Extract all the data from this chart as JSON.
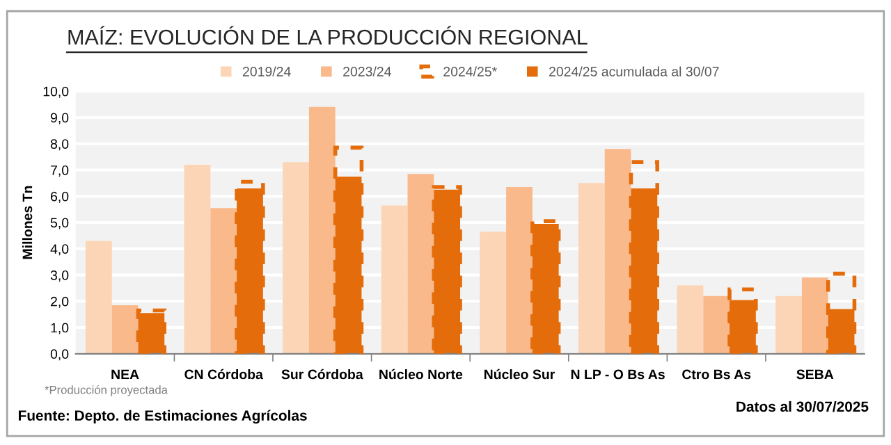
{
  "chart_data": {
    "type": "bar",
    "title": "MAÍZ: EVOLUCIÓN DE LA PRODUCCIÓN REGIONAL",
    "ylabel": "Millones Tn",
    "categories": [
      "NEA",
      "CN Córdoba",
      "Sur Córdoba",
      "Núcleo Norte",
      "Núcleo Sur",
      "N LP - O Bs As",
      "Ctro Bs As",
      "SEBA"
    ],
    "series": [
      {
        "name": "2019/24",
        "color": "#fbd5b5",
        "values": [
          4.3,
          7.2,
          7.3,
          5.65,
          4.65,
          6.5,
          2.6,
          2.2
        ]
      },
      {
        "name": "2023/24",
        "color": "#f9b98a",
        "values": [
          1.85,
          5.55,
          9.4,
          6.85,
          6.35,
          7.8,
          2.2,
          2.9
        ]
      },
      {
        "name": "2024/25*",
        "color": "#e46c0a",
        "line_style": "dashed",
        "values": [
          1.65,
          6.55,
          7.85,
          6.35,
          5.05,
          7.3,
          2.45,
          3.05
        ]
      },
      {
        "name": "2024/25 acumulada al 30/07",
        "color": "#e46c0a",
        "values": [
          1.55,
          6.3,
          6.75,
          6.25,
          4.95,
          6.3,
          2.05,
          1.7
        ]
      }
    ],
    "ylim": [
      0,
      10
    ],
    "yticks": [
      {
        "value": 0,
        "label": "0,0"
      },
      {
        "value": 1,
        "label": "1,0"
      },
      {
        "value": 2,
        "label": "2,0"
      },
      {
        "value": 3,
        "label": "3,0"
      },
      {
        "value": 4,
        "label": "4,0"
      },
      {
        "value": 5,
        "label": "5,0"
      },
      {
        "value": 6,
        "label": "6,0"
      },
      {
        "value": 7,
        "label": "7,0"
      },
      {
        "value": 8,
        "label": "8,0"
      },
      {
        "value": 9,
        "label": "9,0"
      },
      {
        "value": 10,
        "label": "10,0"
      }
    ],
    "grid": "y",
    "legend": "top",
    "annotations": [
      "*Producción proyectada",
      "Fuente: Depto. de Estimaciones Agrícolas",
      "Datos al 30/07/2025"
    ]
  }
}
